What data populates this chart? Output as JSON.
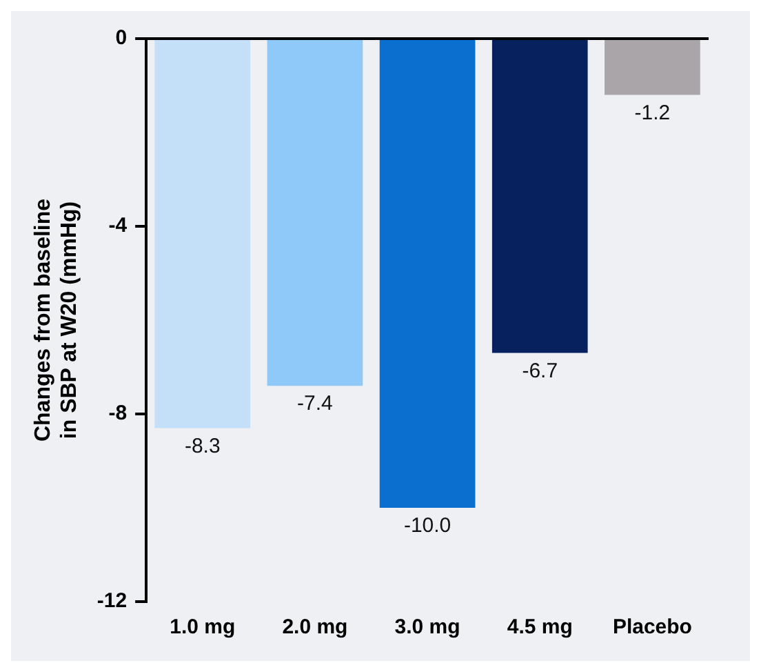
{
  "chart_data": {
    "type": "bar",
    "ylabel": "Changes from baseline\nin SBP at W20 (mmHg)",
    "categories": [
      "1.0 mg",
      "2.0 mg",
      "3.0 mg",
      "4.5 mg",
      "Placebo"
    ],
    "values": [
      -8.3,
      -7.4,
      -10.0,
      -6.7,
      -1.2
    ],
    "colors": [
      "#c4e0f9",
      "#8ec9f9",
      "#0a6fcf",
      "#06215e",
      "#a9a5a9"
    ],
    "value_labels": [
      "-8.3",
      "-7.4",
      "-10.0",
      "-6.7",
      "-1.2"
    ],
    "ylim": [
      -12,
      0
    ],
    "yticks": [
      0,
      -4,
      -8,
      -12
    ],
    "grid": false,
    "legend": false
  }
}
